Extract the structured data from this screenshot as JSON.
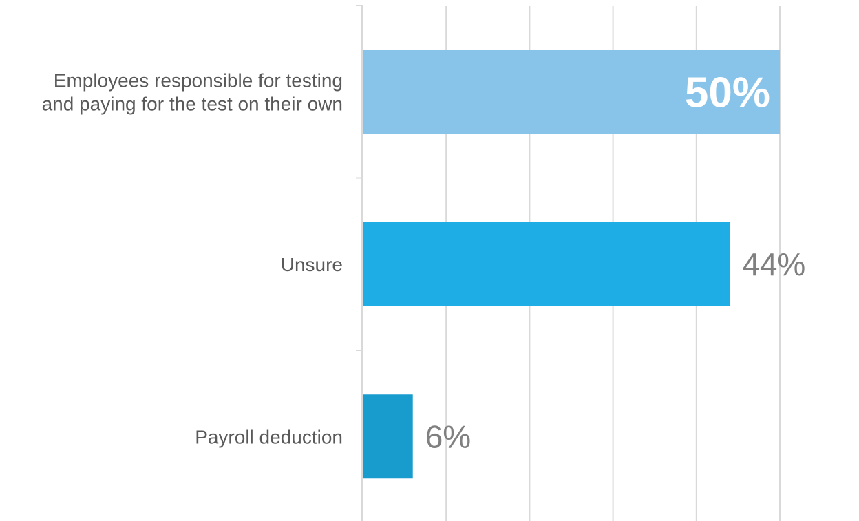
{
  "chart_data": {
    "type": "bar",
    "orientation": "horizontal",
    "categories": [
      [
        "Employees responsible for testing",
        "and paying for the test on their own"
      ],
      [
        "Unsure"
      ],
      [
        "Payroll deduction"
      ]
    ],
    "values": [
      50,
      44,
      6
    ],
    "value_labels": [
      "50%",
      "44%",
      "6%"
    ],
    "colors": [
      "#88C3EA",
      "#1EADE4",
      "#189CCD"
    ],
    "xlim": [
      0,
      50
    ],
    "grid": true,
    "legend": "none"
  }
}
